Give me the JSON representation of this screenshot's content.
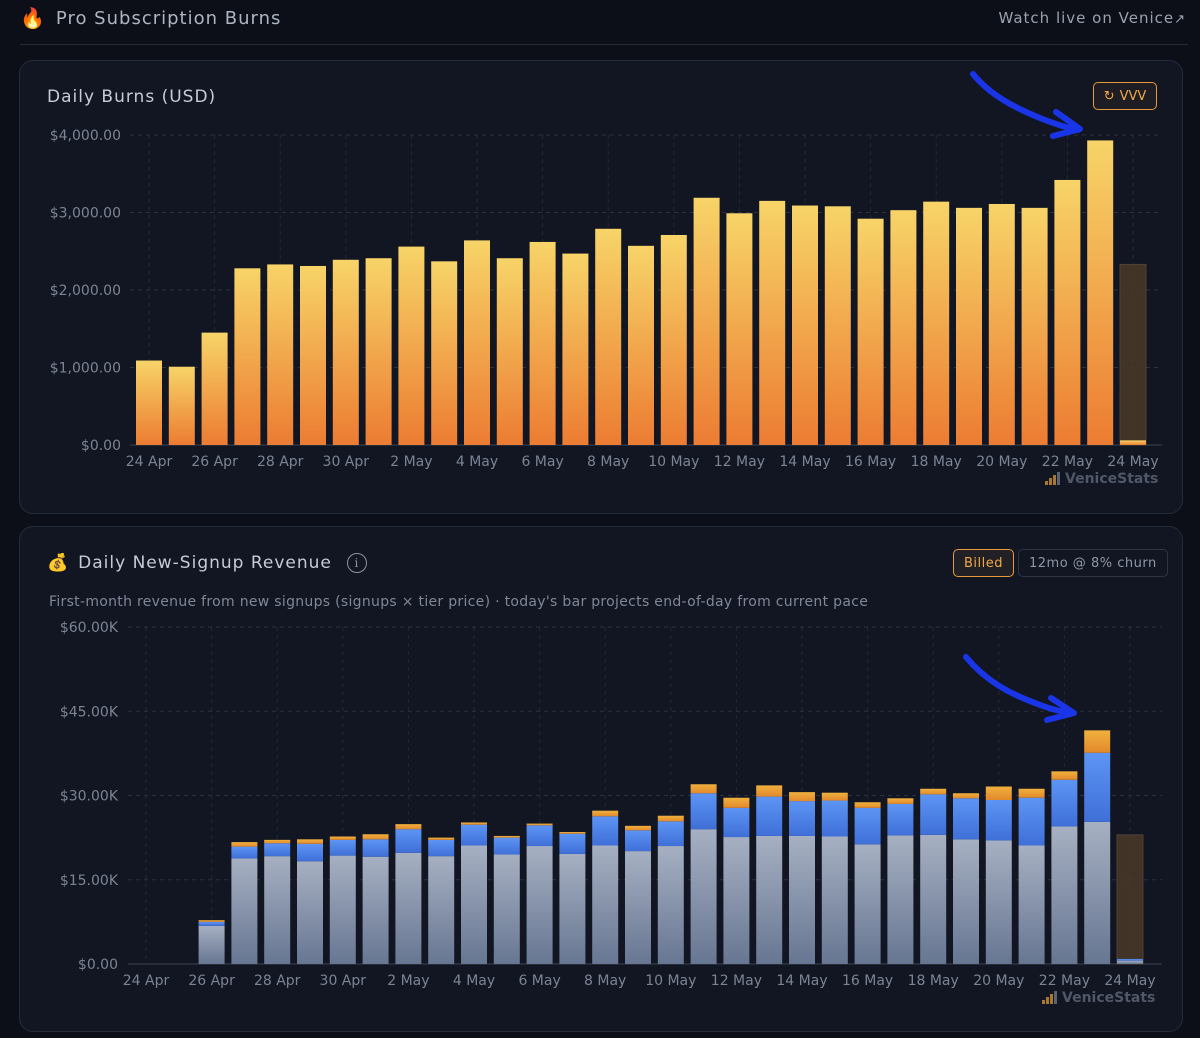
{
  "header": {
    "title_icon": "fire-icon",
    "title": "Pro Subscription Burns",
    "watch_link": "Watch live on Venice",
    "watch_arrow": "↗"
  },
  "burns_panel": {
    "title": "Daily Burns (USD)",
    "vvv_label": "VVV",
    "vvv_icon": "refresh-icon",
    "watermark": "VeniceStats"
  },
  "signup_panel": {
    "title_icon": "money-bag-icon",
    "title": "Daily New-Signup Revenue",
    "info_glyph": "i",
    "toggles": [
      "Billed",
      "12mo @ 8% churn"
    ],
    "active_toggle": "Billed",
    "subtitle": "First-month revenue from new signups (signups × tier price) · today's bar projects end-of-day from current pace",
    "watermark": "VeniceStats"
  },
  "colors": {
    "bar_top": "#f7d468",
    "bar_bottom": "#ec7c32",
    "grey_top": "#a6b0c2",
    "grey_bottom": "#677692",
    "blue_top": "#5d95f4",
    "blue_bottom": "#3f6fd8",
    "orange_top": "#f0b13e",
    "orange_bottom": "#e2892b",
    "projected": "#4a3a28",
    "annotation_arrow": "#1a35e8"
  },
  "chart_data": [
    {
      "type": "bar",
      "title": "Daily Burns (USD)",
      "categories": [
        "24 Apr",
        "25 Apr",
        "26 Apr",
        "27 Apr",
        "28 Apr",
        "29 Apr",
        "30 Apr",
        "1 May",
        "2 May",
        "3 May",
        "4 May",
        "5 May",
        "6 May",
        "7 May",
        "8 May",
        "9 May",
        "10 May",
        "11 May",
        "12 May",
        "13 May",
        "14 May",
        "15 May",
        "16 May",
        "17 May",
        "18 May",
        "19 May",
        "20 May",
        "21 May",
        "22 May",
        "23 May",
        "24 May"
      ],
      "x_tick_labels": [
        "24 Apr",
        "26 Apr",
        "28 Apr",
        "30 Apr",
        "2 May",
        "4 May",
        "6 May",
        "8 May",
        "10 May",
        "12 May",
        "14 May",
        "16 May",
        "18 May",
        "20 May",
        "22 May",
        "24 May"
      ],
      "values": [
        1090,
        1010,
        1450,
        2280,
        2330,
        2310,
        2390,
        2410,
        2560,
        2370,
        2640,
        2410,
        2620,
        2470,
        2790,
        2570,
        2710,
        3190,
        2990,
        3150,
        3090,
        3080,
        2920,
        3030,
        3140,
        3060,
        3110,
        3060,
        3420,
        3930,
        60
      ],
      "projected_last": 2330,
      "y_tick_labels": [
        "$0.00",
        "$1,000.00",
        "$2,000.00",
        "$3,000.00",
        "$4,000.00"
      ],
      "ylim": [
        0,
        4000
      ],
      "grid": true
    },
    {
      "type": "bar",
      "stacked": true,
      "title": "Daily New-Signup Revenue",
      "categories": [
        "24 Apr",
        "25 Apr",
        "26 Apr",
        "27 Apr",
        "28 Apr",
        "29 Apr",
        "30 Apr",
        "1 May",
        "2 May",
        "3 May",
        "4 May",
        "5 May",
        "6 May",
        "7 May",
        "8 May",
        "9 May",
        "10 May",
        "11 May",
        "12 May",
        "13 May",
        "14 May",
        "15 May",
        "16 May",
        "17 May",
        "18 May",
        "19 May",
        "20 May",
        "21 May",
        "22 May",
        "23 May",
        "24 May"
      ],
      "x_tick_labels": [
        "24 Apr",
        "26 Apr",
        "28 Apr",
        "30 Apr",
        "2 May",
        "4 May",
        "6 May",
        "8 May",
        "10 May",
        "12 May",
        "14 May",
        "16 May",
        "18 May",
        "20 May",
        "22 May",
        "24 May"
      ],
      "series": [
        {
          "values": [
            0,
            0,
            6800,
            18800,
            19200,
            18300,
            19300,
            19100,
            19800,
            19200,
            21100,
            19500,
            21000,
            19600,
            21100,
            20100,
            21000,
            24000,
            22600,
            22800,
            22800,
            22700,
            21300,
            22900,
            23000,
            22200,
            22000,
            21100,
            24500,
            25300,
            600
          ]
        },
        {
          "values": [
            0,
            0,
            700,
            2100,
            2300,
            3100,
            2800,
            3100,
            4200,
            2900,
            3700,
            3000,
            3700,
            3600,
            5200,
            3700,
            4400,
            6400,
            5200,
            7000,
            6200,
            6400,
            6500,
            5600,
            7200,
            7300,
            7200,
            8500,
            8300,
            12300,
            300
          ]
        },
        {
          "values": [
            0,
            0,
            300,
            800,
            600,
            800,
            600,
            900,
            900,
            400,
            400,
            300,
            300,
            300,
            1000,
            800,
            1000,
            1600,
            1800,
            2000,
            1600,
            1400,
            1000,
            1000,
            1000,
            900,
            2400,
            1600,
            1500,
            4000,
            0
          ]
        }
      ],
      "projected_last": 23000,
      "y_tick_labels": [
        "$0.00",
        "$15.00K",
        "$30.00K",
        "$45.00K",
        "$60.00K"
      ],
      "ylim": [
        0,
        60000
      ],
      "grid": true
    }
  ]
}
